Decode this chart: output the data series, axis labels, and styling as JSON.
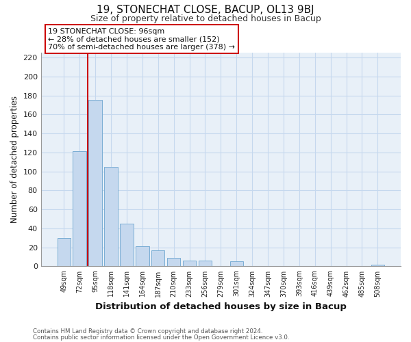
{
  "title_line1": "19, STONECHAT CLOSE, BACUP, OL13 9BJ",
  "title_line2": "Size of property relative to detached houses in Bacup",
  "xlabel": "Distribution of detached houses by size in Bacup",
  "ylabel": "Number of detached properties",
  "categories": [
    "49sqm",
    "72sqm",
    "95sqm",
    "118sqm",
    "141sqm",
    "164sqm",
    "187sqm",
    "210sqm",
    "233sqm",
    "256sqm",
    "279sqm",
    "301sqm",
    "324sqm",
    "347sqm",
    "370sqm",
    "393sqm",
    "416sqm",
    "439sqm",
    "462sqm",
    "485sqm",
    "508sqm"
  ],
  "values": [
    30,
    121,
    175,
    105,
    45,
    21,
    17,
    9,
    6,
    6,
    0,
    5,
    0,
    0,
    0,
    0,
    0,
    0,
    0,
    0,
    2
  ],
  "bar_color": "#c5d8ee",
  "bar_edge_color": "#7aadd4",
  "vline_color": "#cc0000",
  "vline_x_idx": 2,
  "ylim": [
    0,
    225
  ],
  "yticks": [
    0,
    20,
    40,
    60,
    80,
    100,
    120,
    140,
    160,
    180,
    200,
    220
  ],
  "grid_color": "#c5d8ee",
  "bg_color": "#e8f0f8",
  "annotation_title": "19 STONECHAT CLOSE: 96sqm",
  "annotation_line2": "← 28% of detached houses are smaller (152)",
  "annotation_line3": "70% of semi-detached houses are larger (378) →",
  "footer_line1": "Contains HM Land Registry data © Crown copyright and database right 2024.",
  "footer_line2": "Contains public sector information licensed under the Open Government Licence v3.0."
}
